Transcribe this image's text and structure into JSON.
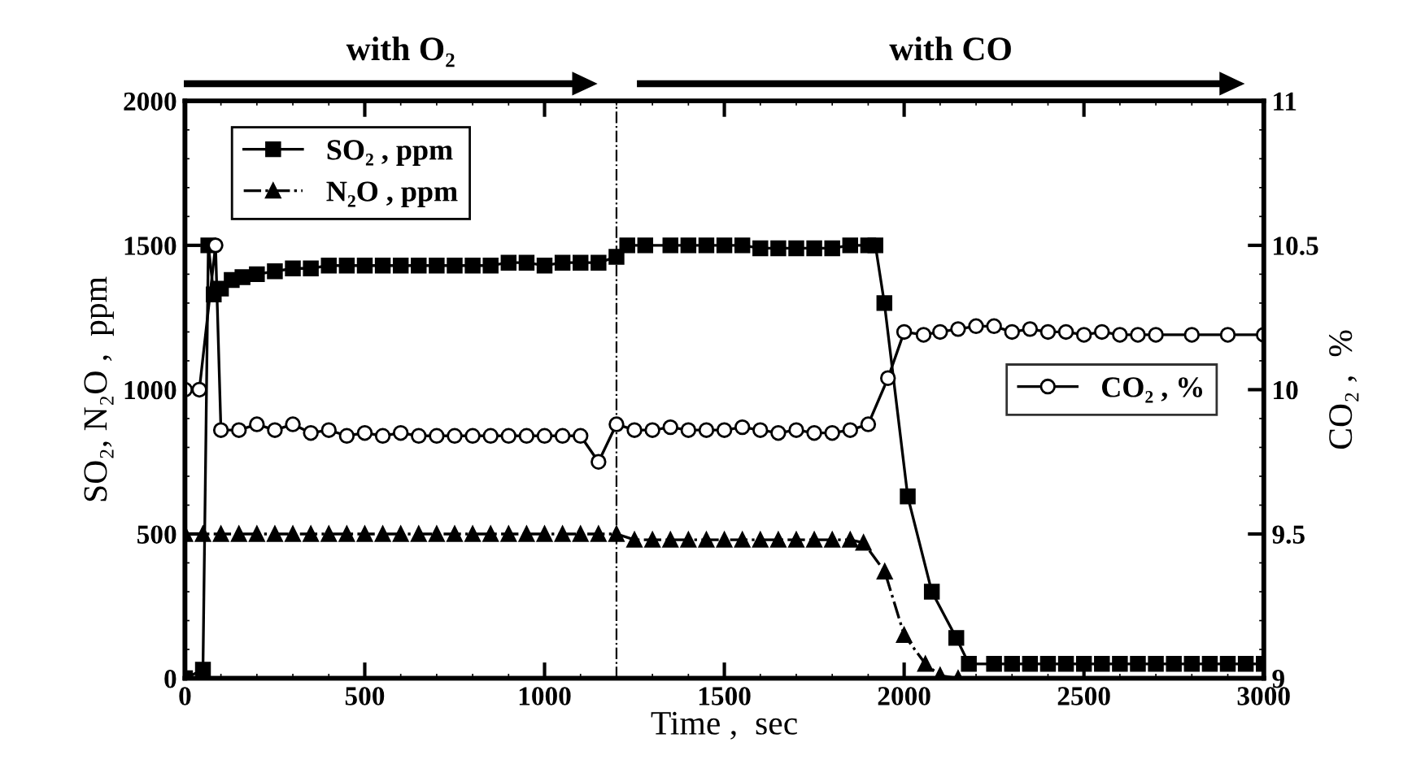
{
  "chart_data": {
    "type": "line",
    "xlabel": "Time ,  sec",
    "ylabel": "SO₂, N₂O ,  ppm",
    "y2label": "CO₂ ,  %",
    "xlim": [
      0,
      3000
    ],
    "xticks": [
      0,
      500,
      1000,
      1500,
      2000,
      2500,
      3000
    ],
    "ylim": [
      0,
      2000
    ],
    "yticks": [
      0,
      500,
      1000,
      1500,
      2000
    ],
    "y2lim": [
      9,
      11
    ],
    "y2ticks": [
      9,
      9.5,
      10,
      10.5,
      11
    ],
    "grid": false,
    "legend": "top left",
    "series": [
      {
        "name": "SO₂ , ppm",
        "color": "#000000",
        "marker": "square",
        "line_style": "solid",
        "x": [
          0,
          50,
          65,
          80,
          100,
          130,
          160,
          200,
          250,
          300,
          350,
          400,
          450,
          500,
          550,
          600,
          650,
          700,
          750,
          800,
          850,
          900,
          950,
          1000,
          1050,
          1100,
          1150,
          1200,
          1230,
          1280,
          1350,
          1400,
          1450,
          1500,
          1550,
          1600,
          1650,
          1700,
          1750,
          1800,
          1850,
          1900,
          1920,
          1945,
          2010,
          2077,
          2145,
          2180,
          2250,
          2300,
          2350,
          2400,
          2450,
          2500,
          2550,
          2600,
          2650,
          2700,
          2750,
          2800,
          2850,
          2900,
          2950,
          3000
        ],
        "values": [
          0,
          30,
          1500,
          1330,
          1350,
          1380,
          1390,
          1400,
          1410,
          1420,
          1420,
          1430,
          1430,
          1430,
          1430,
          1430,
          1430,
          1430,
          1430,
          1430,
          1430,
          1440,
          1440,
          1430,
          1440,
          1440,
          1440,
          1460,
          1500,
          1500,
          1500,
          1500,
          1500,
          1500,
          1500,
          1490,
          1490,
          1490,
          1490,
          1490,
          1500,
          1500,
          1500,
          1300,
          630,
          300,
          140,
          50,
          50,
          50,
          50,
          50,
          50,
          50,
          50,
          50,
          50,
          50,
          50,
          50,
          50,
          50,
          50,
          50
        ]
      },
      {
        "name": "N₂O , ppm",
        "color": "#000000",
        "marker": "triangle",
        "line_style": "dashed",
        "x": [
          0,
          50,
          100,
          150,
          200,
          250,
          300,
          350,
          400,
          450,
          500,
          550,
          600,
          650,
          700,
          750,
          800,
          850,
          900,
          950,
          1000,
          1050,
          1100,
          1150,
          1200,
          1250,
          1300,
          1350,
          1400,
          1450,
          1500,
          1550,
          1600,
          1650,
          1700,
          1750,
          1800,
          1850,
          1887,
          1946,
          2000,
          2059,
          2100,
          2150
        ],
        "values": [
          500,
          500,
          500,
          500,
          500,
          500,
          500,
          500,
          500,
          500,
          500,
          500,
          500,
          500,
          500,
          500,
          500,
          500,
          500,
          500,
          500,
          500,
          500,
          500,
          500,
          480,
          480,
          480,
          480,
          480,
          480,
          480,
          480,
          480,
          480,
          480,
          480,
          480,
          470,
          370,
          150,
          50,
          10,
          0
        ]
      },
      {
        "name": "CO₂ , %",
        "color": "#000000",
        "marker": "circle",
        "line_style": "solid",
        "axis": "y2",
        "x": [
          0,
          40,
          85,
          100,
          150,
          200,
          250,
          300,
          350,
          400,
          450,
          500,
          550,
          600,
          650,
          700,
          750,
          800,
          850,
          900,
          950,
          1000,
          1050,
          1100,
          1150,
          1200,
          1250,
          1300,
          1350,
          1400,
          1450,
          1500,
          1550,
          1600,
          1650,
          1700,
          1750,
          1800,
          1850,
          1900,
          1955,
          2000,
          2054,
          2100,
          2150,
          2200,
          2250,
          2300,
          2350,
          2400,
          2450,
          2500,
          2550,
          2600,
          2650,
          2700,
          2800,
          2900,
          3000
        ],
        "values": [
          10.0,
          10.0,
          10.5,
          9.86,
          9.86,
          9.88,
          9.86,
          9.88,
          9.85,
          9.86,
          9.84,
          9.85,
          9.84,
          9.85,
          9.84,
          9.84,
          9.84,
          9.84,
          9.84,
          9.84,
          9.84,
          9.84,
          9.84,
          9.84,
          9.75,
          9.88,
          9.86,
          9.86,
          9.87,
          9.86,
          9.86,
          9.86,
          9.87,
          9.86,
          9.85,
          9.86,
          9.85,
          9.85,
          9.86,
          9.88,
          10.04,
          10.2,
          10.19,
          10.2,
          10.21,
          10.22,
          10.22,
          10.2,
          10.21,
          10.2,
          10.2,
          10.19,
          10.2,
          10.19,
          10.19,
          10.19,
          10.19,
          10.19,
          10.19
        ]
      }
    ],
    "ref_lines": [
      {
        "axis": "x",
        "value": 1200,
        "line_style": "dashed",
        "color": "#000000"
      }
    ],
    "annotations": [
      "with O₂",
      "with CO"
    ]
  }
}
